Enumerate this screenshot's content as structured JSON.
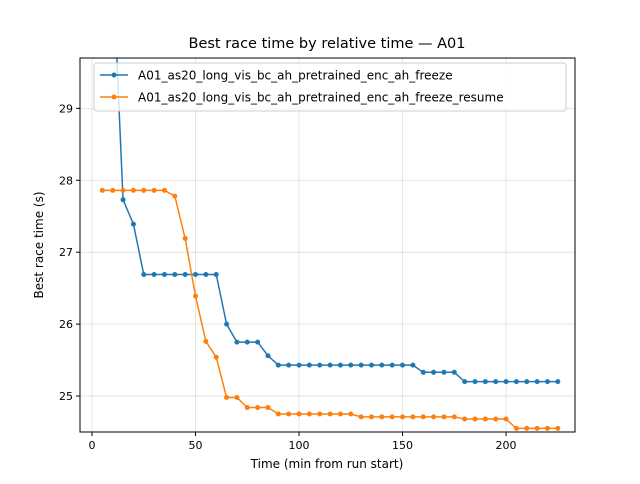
{
  "chart_data": {
    "type": "line",
    "title": "Best race time by relative time — A01",
    "xlabel": "Time (min from run start)",
    "ylabel": "Best race time (s)",
    "xlim": [
      -5.8,
      233.3
    ],
    "ylim": [
      24.5,
      29.7
    ],
    "xticks": [
      0,
      50,
      100,
      150,
      200
    ],
    "yticks": [
      25,
      26,
      27,
      28,
      29
    ],
    "grid": true,
    "legend": "top-left",
    "series": [
      {
        "name": "A01_as20_long_vis_bc_ah_pretrained_enc_ah_freeze",
        "color": "#1f77b4",
        "x": [
          10,
          15,
          20,
          25,
          30,
          35,
          40,
          45,
          50,
          55,
          60,
          65,
          70,
          75,
          80,
          85,
          90,
          95,
          100,
          105,
          110,
          115,
          120,
          125,
          130,
          135,
          140,
          145,
          150,
          155,
          160,
          165,
          170,
          175,
          180,
          185,
          190,
          195,
          200,
          205,
          210,
          215,
          220,
          225
        ],
        "y": [
          31.0,
          27.73,
          27.39,
          26.69,
          26.69,
          26.69,
          26.69,
          26.69,
          26.69,
          26.69,
          26.69,
          26.0,
          25.75,
          25.75,
          25.75,
          25.56,
          25.43,
          25.43,
          25.43,
          25.43,
          25.43,
          25.43,
          25.43,
          25.43,
          25.43,
          25.43,
          25.43,
          25.43,
          25.43,
          25.43,
          25.33,
          25.33,
          25.33,
          25.33,
          25.2,
          25.2,
          25.2,
          25.2,
          25.2,
          25.2,
          25.2,
          25.2,
          25.2,
          25.2
        ]
      },
      {
        "name": "A01_as20_long_vis_bc_ah_pretrained_enc_ah_freeze_resume",
        "color": "#ff7f0e",
        "x": [
          5,
          10,
          15,
          20,
          25,
          30,
          35,
          40,
          45,
          50,
          55,
          60,
          65,
          70,
          75,
          80,
          85,
          90,
          95,
          100,
          105,
          110,
          115,
          120,
          125,
          130,
          135,
          140,
          145,
          150,
          155,
          160,
          165,
          170,
          175,
          180,
          185,
          190,
          195,
          200,
          205,
          210,
          215,
          220,
          225
        ],
        "y": [
          27.86,
          27.86,
          27.86,
          27.86,
          27.86,
          27.86,
          27.86,
          27.78,
          27.19,
          26.39,
          25.76,
          25.54,
          24.98,
          24.98,
          24.84,
          24.84,
          24.84,
          24.75,
          24.75,
          24.75,
          24.75,
          24.75,
          24.75,
          24.75,
          24.75,
          24.71,
          24.71,
          24.71,
          24.71,
          24.71,
          24.71,
          24.71,
          24.71,
          24.71,
          24.71,
          24.68,
          24.68,
          24.68,
          24.68,
          24.68,
          24.55,
          24.55,
          24.55,
          24.55,
          24.55
        ]
      }
    ]
  }
}
